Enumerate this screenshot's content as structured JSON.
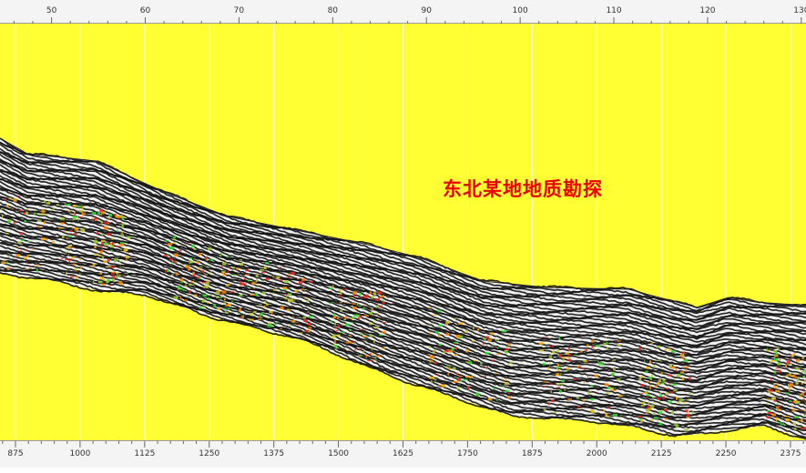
{
  "title": "东北某地地质勘探",
  "top_ruler": {
    "labels": [
      "50",
      "60",
      "70",
      "80",
      "90",
      "100",
      "110",
      "120",
      "130"
    ],
    "values": [
      50,
      60,
      70,
      80,
      90,
      100,
      110,
      120,
      130
    ],
    "range": [
      44.5,
      130.5
    ]
  },
  "bottom_ruler": {
    "labels": [
      "875",
      "1000",
      "1125",
      "1250",
      "1375",
      "1500",
      "1625",
      "1750",
      "1875",
      "2000",
      "2125",
      "2250",
      "2375"
    ],
    "values": [
      875,
      1000,
      1125,
      1250,
      1375,
      1500,
      1625,
      1750,
      1875,
      2000,
      2125,
      2250,
      2375
    ],
    "range": [
      845,
      2405
    ]
  },
  "colors": {
    "background": "#ffff33",
    "gridline": "#ffffff",
    "trace_dark": "#111111",
    "trace_light": "#f2f2f2",
    "anomaly": [
      "#33dd33",
      "#ff8800",
      "#ee2222",
      "#99cc33",
      "#cccc33",
      "#ffaa00"
    ],
    "title_text": "#ee0000"
  },
  "icons": {
    "section": "seismic-profile"
  }
}
